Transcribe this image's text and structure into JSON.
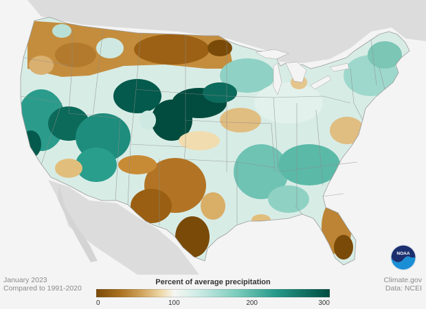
{
  "footer": {
    "date": "January 2023",
    "baseline": "Compared to 1991-2020",
    "source": "Climate.gov",
    "data_credit": "Data: NCEI"
  },
  "legend": {
    "title": "Percent of average precipitation",
    "ticks": [
      {
        "value": 0,
        "label": "0"
      },
      {
        "value": 100,
        "label": "100"
      },
      {
        "value": 200,
        "label": "200"
      },
      {
        "value": 300,
        "label": "300"
      }
    ],
    "min": 0,
    "max": 300,
    "stops": [
      {
        "value": 0,
        "color": "#7a4a08"
      },
      {
        "value": 30,
        "color": "#a8701e"
      },
      {
        "value": 60,
        "color": "#d2a760"
      },
      {
        "value": 85,
        "color": "#f0dcae"
      },
      {
        "value": 100,
        "color": "#f6f6f2"
      },
      {
        "value": 130,
        "color": "#cfece6"
      },
      {
        "value": 180,
        "color": "#7ccdbd"
      },
      {
        "value": 230,
        "color": "#279a8a"
      },
      {
        "value": 300,
        "color": "#004d40"
      }
    ]
  },
  "logo": {
    "text": "NOAA"
  },
  "colors": {
    "background": "#f4f4f4",
    "land_outside": "#dcdcdc",
    "water": "#f4f4f4",
    "state_border": "#8a8a8a"
  }
}
